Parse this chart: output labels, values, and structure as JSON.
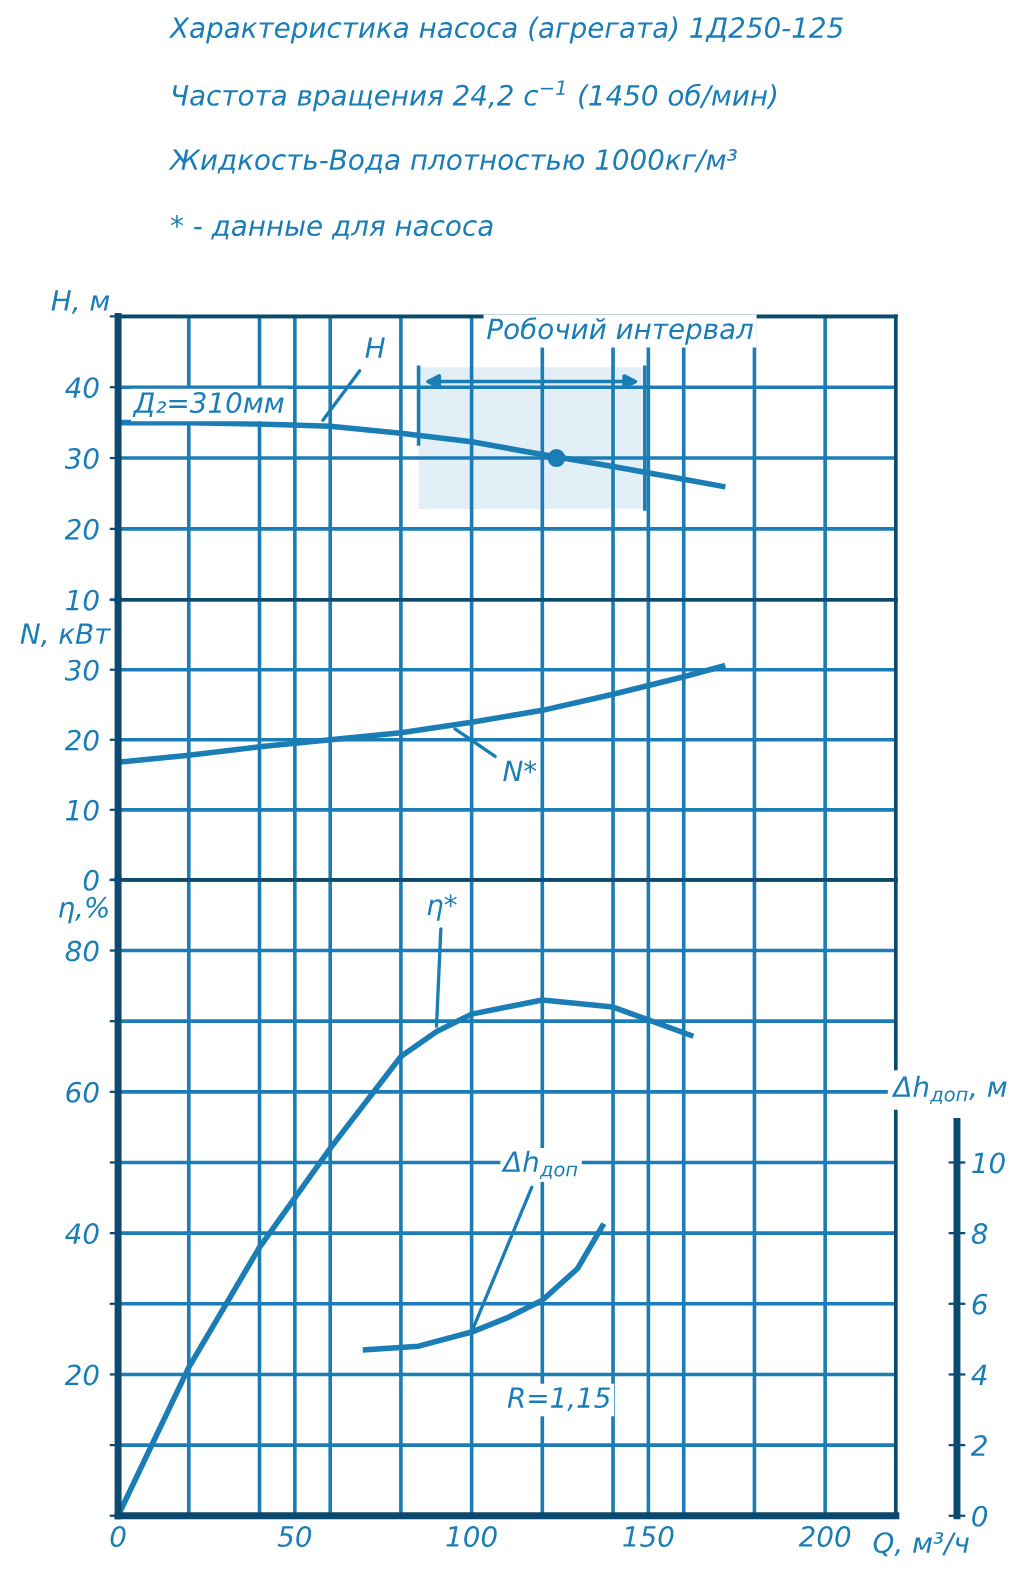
{
  "chart_data": [
    {
      "type": "line",
      "title": "Характеристика насоса (агрегата) 1Д250-125",
      "subtitle": "Частота вращения 24,2 с$^{−1}$ (1450 об/мин)",
      "annotations": [
        "Жидкость-Вода плотностью 1000кг/м³",
        "* - данные для насоса",
        "Д₂=310мм",
        {
          "text": "H",
          "x": 57,
          "y": 34.7
        }
      ],
      "ylabel": "H, м",
      "xlim": [
        0,
        220
      ],
      "xticks": [
        0,
        {
          "value": 20,
          "label": null
        },
        {
          "value": 40,
          "label": null
        },
        50,
        {
          "value": 60,
          "label": null
        },
        {
          "value": 80,
          "label": null
        },
        100,
        {
          "value": 120,
          "label": null
        },
        {
          "value": 140,
          "label": null
        },
        150,
        {
          "value": 160,
          "label": null
        },
        {
          "value": 180,
          "label": null
        },
        200,
        {
          "value": 220,
          "label": null
        }
      ],
      "ylim": [
        10,
        50
      ],
      "yticks": [
        10,
        20,
        30,
        40,
        {
          "value": 50,
          "label": null
        }
      ],
      "tick_labels": "y",
      "grid": true,
      "bands": [
        {
          "axis": "x",
          "from": 85,
          "to": 149,
          "label": "Робочий интервал"
        }
      ],
      "series": [
        {
          "color": "#1a7db5",
          "x": [
            0,
            20,
            40,
            60,
            80,
            100,
            120,
            140,
            160,
            171
          ],
          "values": [
            35,
            35,
            34.8,
            34.5,
            33.5,
            32.3,
            30.5,
            28.8,
            27,
            26
          ]
        },
        {
          "type": "scatter",
          "color": "#1a7db5",
          "x": [
            124
          ],
          "values": [
            30
          ]
        }
      ]
    },
    {
      "type": "line",
      "ylabel": "N, кВт",
      "annotations": [
        {
          "text": "N*",
          "x": 94,
          "y": 22
        }
      ],
      "xlim": [
        0,
        220
      ],
      "xticks": [
        0,
        {
          "value": 20,
          "label": null
        },
        {
          "value": 40,
          "label": null
        },
        50,
        {
          "value": 60,
          "label": null
        },
        {
          "value": 80,
          "label": null
        },
        100,
        {
          "value": 120,
          "label": null
        },
        {
          "value": 140,
          "label": null
        },
        150,
        {
          "value": 160,
          "label": null
        },
        {
          "value": 180,
          "label": null
        },
        200,
        {
          "value": 220,
          "label": null
        }
      ],
      "ylim": [
        0,
        40
      ],
      "yticks": [
        0,
        10,
        20,
        30,
        {
          "value": 40,
          "label": null
        }
      ],
      "tick_labels": "y",
      "grid": true,
      "series": [
        {
          "color": "#1a7db5",
          "x": [
            0,
            20,
            40,
            60,
            80,
            100,
            120,
            140,
            160,
            171
          ],
          "values": [
            16.8,
            17.8,
            19,
            20,
            21,
            22.5,
            24.2,
            26.5,
            29,
            30.5
          ]
        }
      ]
    },
    {
      "type": "line",
      "ylabel": "η,%",
      "y2label": "Δh$_{доп}$, м",
      "xlabel": "Q, м³/ч",
      "annotations": [
        {
          "text": "η*",
          "x": 90,
          "y": 68.5
        },
        {
          "text": "Δh$_{доп}$",
          "x": 100,
          "y": 26
        },
        "R=1,15"
      ],
      "xlim": [
        0,
        220
      ],
      "xticks": [
        0,
        {
          "value": 20,
          "label": null
        },
        {
          "value": 40,
          "label": null
        },
        50,
        {
          "value": 60,
          "label": null
        },
        {
          "value": 80,
          "label": null
        },
        100,
        {
          "value": 120,
          "label": null
        },
        {
          "value": 140,
          "label": null
        },
        150,
        {
          "value": 160,
          "label": null
        },
        {
          "value": 180,
          "label": null
        },
        200,
        {
          "value": 220,
          "label": null
        }
      ],
      "ylim": [
        0,
        90
      ],
      "yticks": [
        {
          "value": 0,
          "label": null
        },
        {
          "value": 10,
          "label": null
        },
        20,
        {
          "value": 30,
          "label": null
        },
        40,
        {
          "value": 50,
          "label": null
        },
        60,
        {
          "value": 70,
          "label": null
        },
        80,
        {
          "value": 90,
          "label": null
        }
      ],
      "y2lim": [
        0,
        18
      ],
      "y2ticks": [
        0,
        2,
        4,
        6,
        8,
        10
      ],
      "grid": true,
      "series": [
        {
          "color": "#1a7db5",
          "x": [
            0,
            20,
            40,
            60,
            80,
            90,
            100,
            120,
            140,
            162
          ],
          "values": [
            0,
            21,
            38,
            52,
            65,
            68.5,
            71,
            73,
            72,
            68
          ]
        },
        {
          "color": "#1a7db5",
          "axis": "y2",
          "x": [
            70,
            85,
            100,
            110,
            120,
            130,
            137
          ],
          "values": [
            4.7,
            4.8,
            5.2,
            5.6,
            6.1,
            7.0,
            8.2
          ]
        }
      ]
    }
  ]
}
